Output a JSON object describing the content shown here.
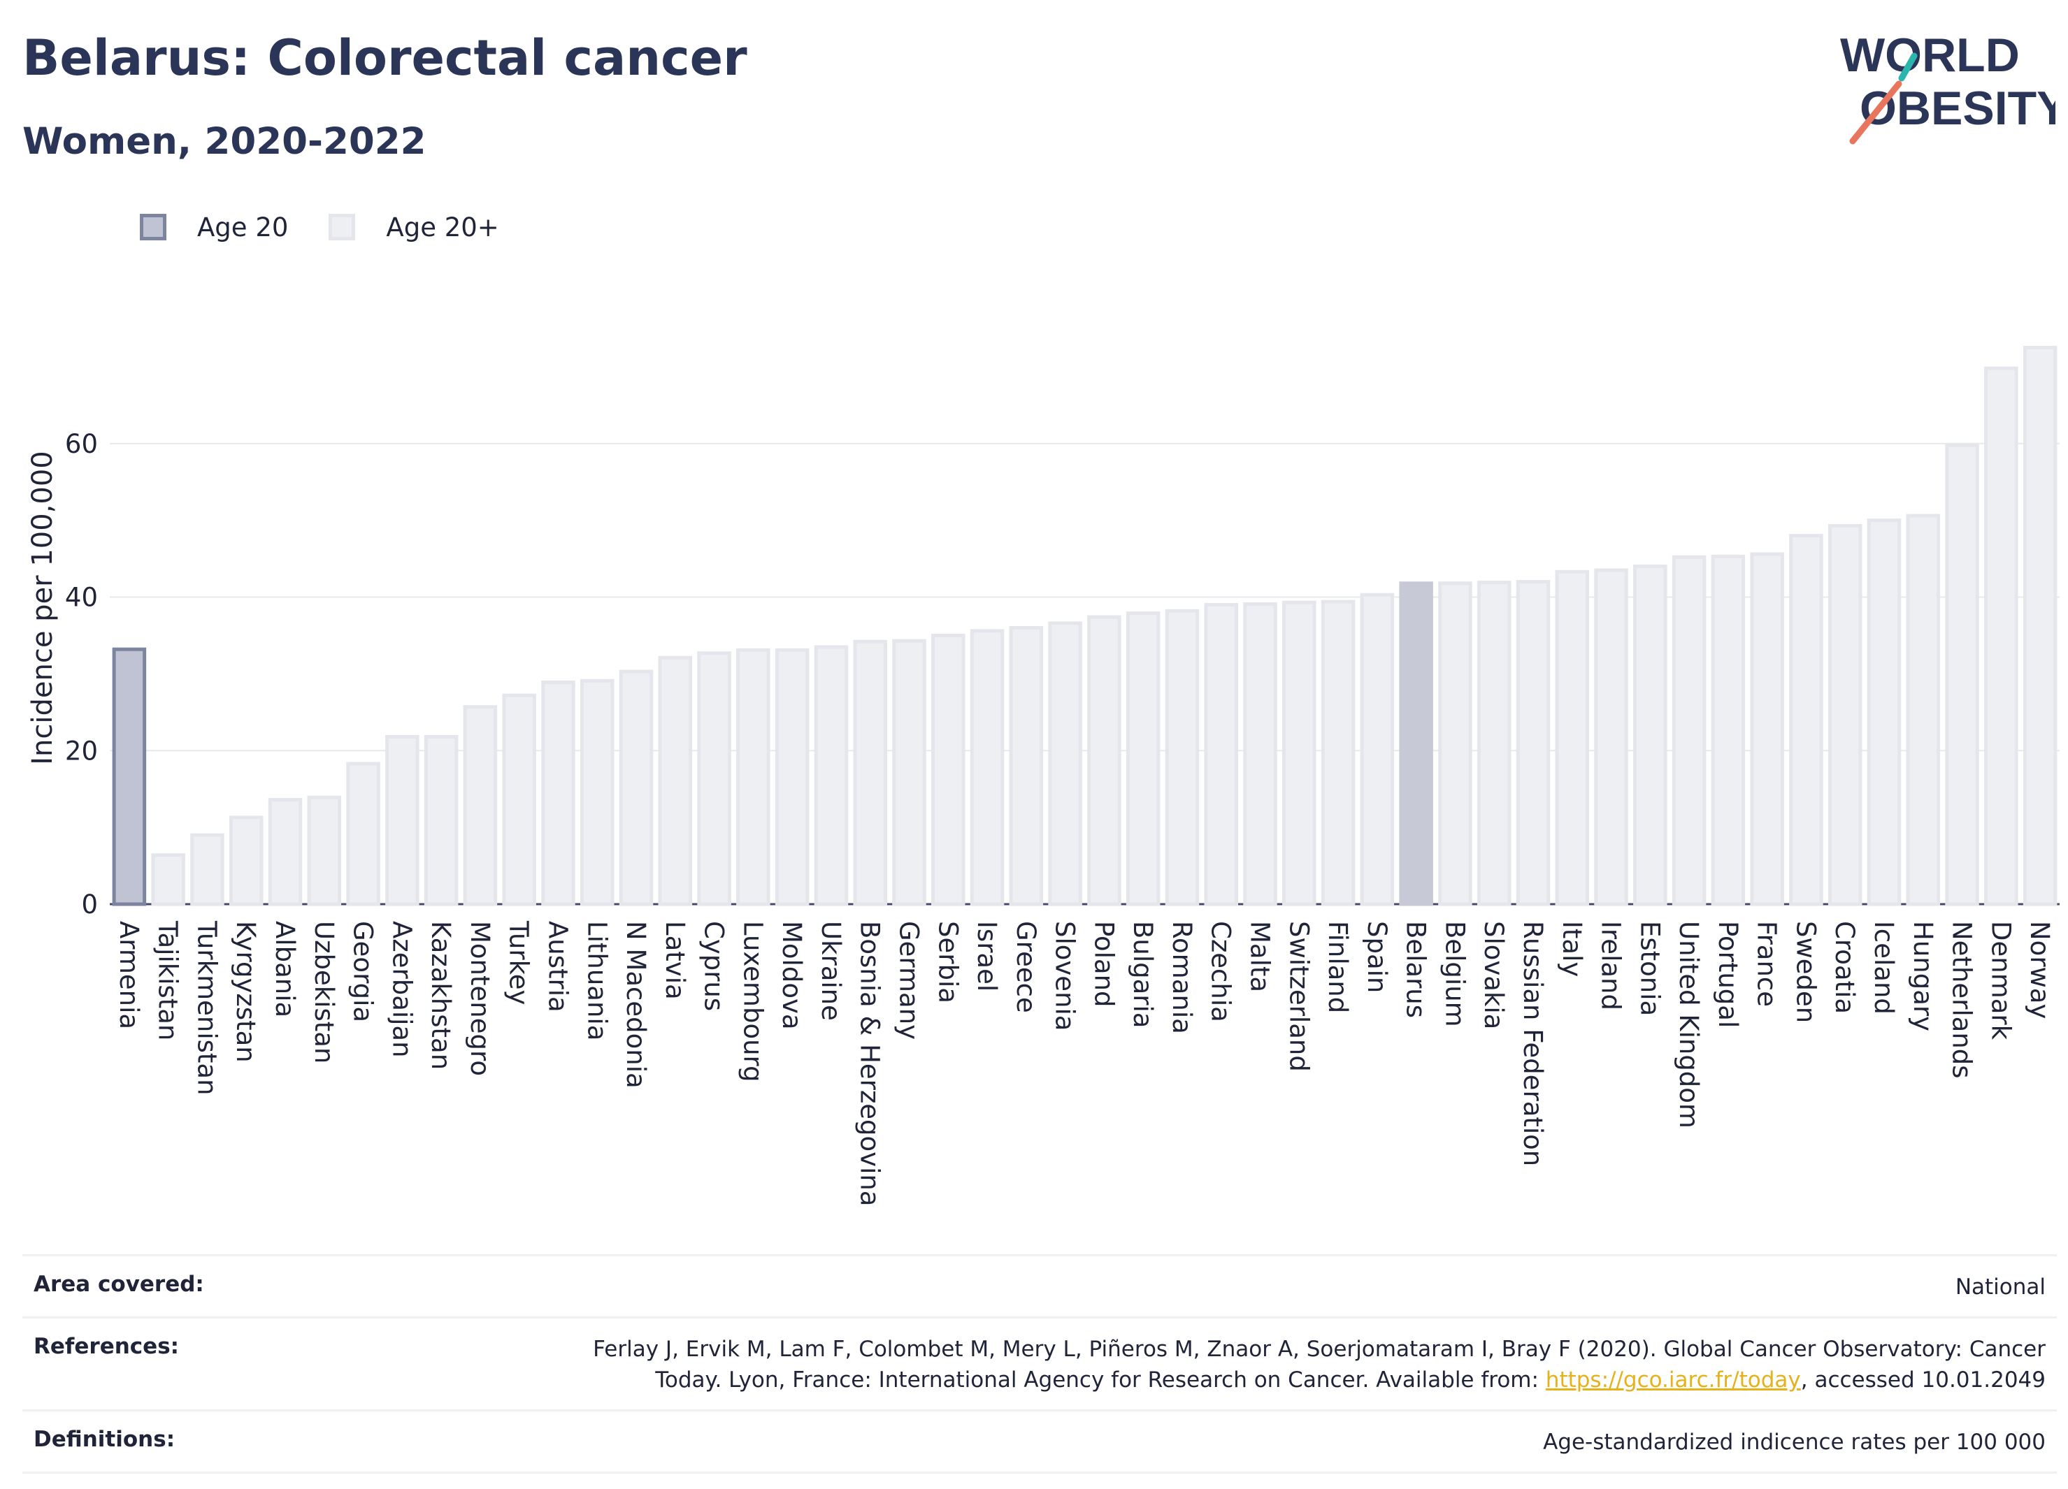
{
  "header": {
    "title": "Belarus: Colorectal cancer",
    "subtitle": "Women, 2020-2022"
  },
  "logo": {
    "line1": "WORLD",
    "line2": "OBESITY"
  },
  "legend": {
    "items": [
      {
        "label": "Age 20",
        "color": "#bfc3d3"
      },
      {
        "label": "Age 20+",
        "color": "#eeeff3"
      }
    ]
  },
  "chart_data": {
    "type": "bar",
    "ylabel": "Incidence per 100,000",
    "xlabel": "",
    "ylim": [
      0,
      75
    ],
    "yticks": [
      0,
      20,
      40,
      60
    ],
    "grid": true,
    "legend_position": "top-left",
    "highlight": "Belarus",
    "categories": [
      "Armenia",
      "Tajikistan",
      "Turkmenistan",
      "Kyrgyzstan",
      "Albania",
      "Uzbekistan",
      "Georgia",
      "Azerbaijan",
      "Kazakhstan",
      "Montenegro",
      "Turkey",
      "Austria",
      "Lithuania",
      "N Macedonia",
      "Latvia",
      "Cyprus",
      "Luxembourg",
      "Moldova",
      "Ukraine",
      "Bosnia & Herzegovina",
      "Germany",
      "Serbia",
      "Israel",
      "Greece",
      "Slovenia",
      "Poland",
      "Bulgaria",
      "Romania",
      "Czechia",
      "Malta",
      "Switzerland",
      "Finland",
      "Spain",
      "Belarus",
      "Belgium",
      "Slovakia",
      "Russian Federation",
      "Italy",
      "Ireland",
      "Estonia",
      "United Kingdom",
      "Portugal",
      "France",
      "Sweden",
      "Croatia",
      "Iceland",
      "Hungary",
      "Netherlands",
      "Denmark",
      "Norway"
    ],
    "series": [
      {
        "name": "Age 20",
        "values": [
          33.2,
          null,
          null,
          null,
          null,
          null,
          null,
          null,
          null,
          null,
          null,
          null,
          null,
          null,
          null,
          null,
          null,
          null,
          null,
          null,
          null,
          null,
          null,
          null,
          null,
          null,
          null,
          null,
          null,
          null,
          null,
          null,
          null,
          null,
          null,
          null,
          null,
          null,
          null,
          null,
          null,
          null,
          null,
          null,
          null,
          null,
          null,
          null,
          null,
          null
        ]
      },
      {
        "name": "Age 20+",
        "values": [
          null,
          6.4,
          9.0,
          11.3,
          13.6,
          13.9,
          18.3,
          21.8,
          21.8,
          25.7,
          27.2,
          28.9,
          29.1,
          30.3,
          32.1,
          32.7,
          33.1,
          33.1,
          33.5,
          34.2,
          34.3,
          35.0,
          35.6,
          36.0,
          36.6,
          37.4,
          37.9,
          38.2,
          39.0,
          39.1,
          39.3,
          39.4,
          40.3,
          41.8,
          41.8,
          41.9,
          42.0,
          43.3,
          43.5,
          44.0,
          45.2,
          45.3,
          45.6,
          48.0,
          49.3,
          50.0,
          50.6,
          59.8,
          69.8,
          72.5
        ]
      }
    ]
  },
  "footer": {
    "rows": [
      {
        "label": "Area covered:",
        "value": "National"
      },
      {
        "label": "References:",
        "value_line1": "Ferlay J, Ervik M, Lam F, Colombet M, Mery L, Piñeros M, Znaor A, Soerjomataram I, Bray F (2020). Global Cancer Observatory: Cancer",
        "value_line2_pre": "Today. Lyon, France: International Agency for Research on Cancer. Available from: ",
        "link": "https://gco.iarc.fr/today",
        "value_line2_post": ", accessed 10.01.2049"
      },
      {
        "label": "Definitions:",
        "value": "Age-standardized indicence rates per 100 000"
      }
    ]
  },
  "colors": {
    "text": "#2b3558",
    "age20_fill": "#bfc3d3",
    "age20_stroke": "#7d84a0",
    "age20plus_fill": "#eeeff3",
    "age20plus_stroke": "#e4e6ec",
    "highlight_fill": "#c7c9d6",
    "grid": "#e8e9ee",
    "axis": "#444a66",
    "link": "#e5b21c",
    "logo_teal": "#2bb5ae",
    "logo_red": "#e8765f"
  }
}
